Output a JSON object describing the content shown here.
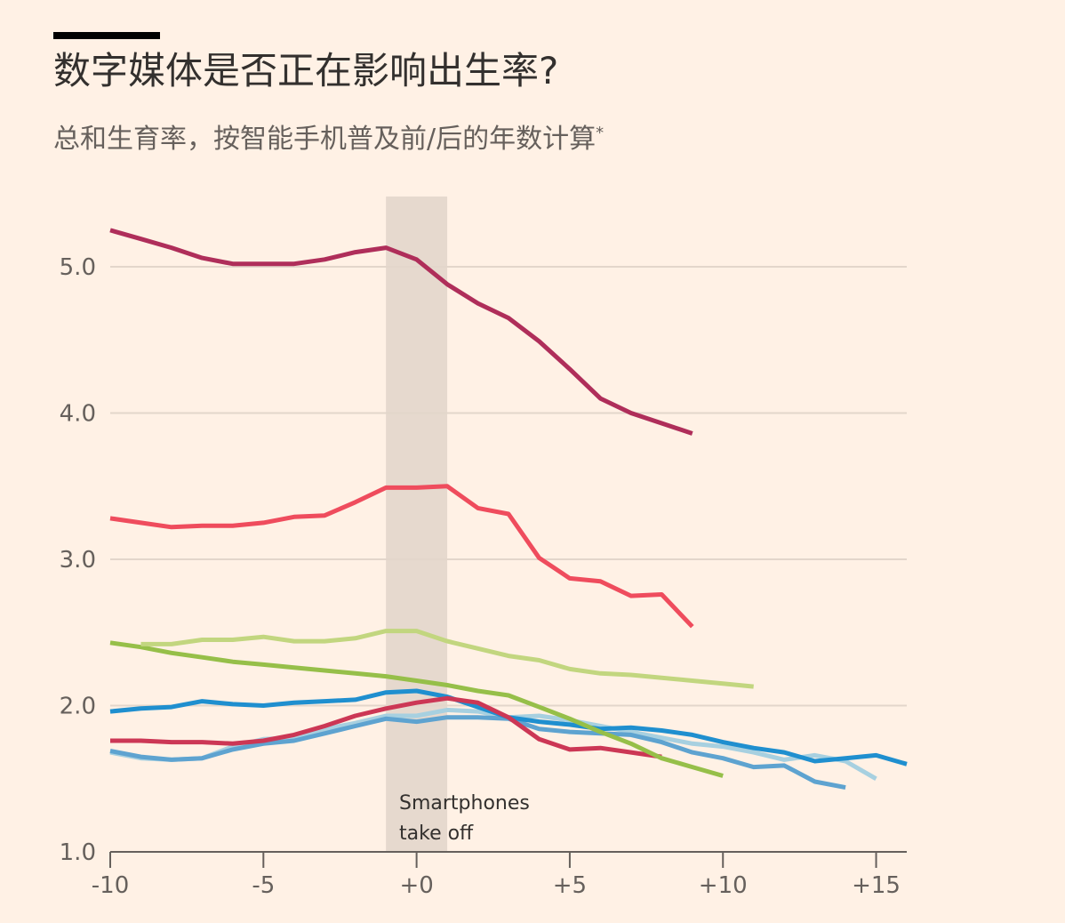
{
  "title": "数字媒体是否正在影响出生率?",
  "subtitle": "总和生育率，按智能手机普及前/后的年数计算",
  "subtitle_marker": "*",
  "annotation": [
    "Smartphones",
    "take off"
  ],
  "chart_data": {
    "type": "line",
    "title": "数字媒体是否正在影响出生率?",
    "subtitle": "总和生育率，按智能手机普及前/后的年数计算*",
    "xlabel": "",
    "ylabel": "",
    "xlim": [
      -10,
      16
    ],
    "ylim": [
      1.0,
      5.5
    ],
    "x_ticks": [
      -10,
      -5,
      0,
      5,
      10,
      15
    ],
    "x_tick_labels": [
      "-10",
      "-5",
      "+0",
      "+5",
      "+10",
      "+15"
    ],
    "y_ticks": [
      1.0,
      2.0,
      3.0,
      4.0,
      5.0
    ],
    "y_tick_labels": [
      "1.0",
      "2.0",
      "3.0",
      "4.0",
      "5.0"
    ],
    "grid": true,
    "shaded_band": {
      "x_from": -1,
      "x_to": 1,
      "label": "Smartphones take off",
      "color": "#E6D9CE"
    },
    "series": [
      {
        "color": "#A7D0E0",
        "x": [
          -10,
          -9,
          -8,
          -7,
          -6,
          -5,
          -4,
          -3,
          -2,
          -1,
          0,
          1,
          2,
          3,
          4,
          5,
          6,
          7,
          8,
          9,
          10,
          11,
          12,
          13,
          14,
          15
        ],
        "values": [
          1.68,
          1.64,
          1.63,
          1.64,
          1.72,
          1.77,
          1.78,
          1.84,
          1.88,
          1.93,
          1.93,
          1.97,
          1.96,
          1.92,
          1.93,
          1.9,
          1.86,
          1.82,
          1.78,
          1.74,
          1.72,
          1.68,
          1.63,
          1.66,
          1.62,
          1.5
        ]
      },
      {
        "color": "#5EA3D0",
        "x": [
          -10,
          -9,
          -8,
          -7,
          -6,
          -5,
          -4,
          -3,
          -2,
          -1,
          0,
          1,
          2,
          3,
          4,
          5,
          6,
          7,
          8,
          9,
          10,
          11,
          12,
          13,
          14
        ],
        "values": [
          1.69,
          1.65,
          1.63,
          1.64,
          1.7,
          1.74,
          1.76,
          1.81,
          1.86,
          1.91,
          1.89,
          1.92,
          1.92,
          1.91,
          1.84,
          1.82,
          1.81,
          1.8,
          1.75,
          1.68,
          1.64,
          1.58,
          1.59,
          1.48,
          1.44
        ]
      },
      {
        "color": "#1F8FCF",
        "x": [
          -10,
          -9,
          -8,
          -7,
          -6,
          -5,
          -4,
          -3,
          -2,
          -1,
          0,
          1,
          2,
          3,
          4,
          5,
          6,
          7,
          8,
          9,
          10,
          11,
          12,
          13,
          14,
          15,
          16
        ],
        "values": [
          1.96,
          1.98,
          1.99,
          2.03,
          2.01,
          2.0,
          2.02,
          2.03,
          2.04,
          2.09,
          2.1,
          2.06,
          1.99,
          1.92,
          1.89,
          1.87,
          1.84,
          1.85,
          1.83,
          1.8,
          1.75,
          1.71,
          1.68,
          1.62,
          1.64,
          1.66,
          1.6
        ]
      },
      {
        "color": "#CC3755",
        "x": [
          -10,
          -9,
          -8,
          -7,
          -6,
          -5,
          -4,
          -3,
          -2,
          -1,
          0,
          1,
          2,
          3,
          4,
          5,
          6,
          7,
          8
        ],
        "values": [
          1.76,
          1.76,
          1.75,
          1.75,
          1.74,
          1.76,
          1.8,
          1.86,
          1.93,
          1.98,
          2.02,
          2.05,
          2.02,
          1.92,
          1.77,
          1.7,
          1.71,
          1.68,
          1.65
        ]
      },
      {
        "color": "#96BF49",
        "x": [
          -10,
          -9,
          -8,
          -7,
          -6,
          -5,
          -4,
          -3,
          -2,
          -1,
          0,
          1,
          2,
          3,
          4,
          5,
          6,
          7,
          8,
          9,
          10
        ],
        "values": [
          2.43,
          2.4,
          2.36,
          2.33,
          2.3,
          2.28,
          2.26,
          2.24,
          2.22,
          2.2,
          2.17,
          2.14,
          2.1,
          2.07,
          1.99,
          1.91,
          1.82,
          1.74,
          1.64,
          1.58,
          1.52
        ]
      },
      {
        "color": "#C2D67F",
        "x": [
          -9,
          -8,
          -7,
          -6,
          -5,
          -4,
          -3,
          -2,
          -1,
          0,
          1,
          2,
          3,
          4,
          5,
          6,
          7,
          8,
          9,
          10,
          11
        ],
        "values": [
          2.42,
          2.42,
          2.45,
          2.45,
          2.47,
          2.44,
          2.44,
          2.46,
          2.51,
          2.51,
          2.44,
          2.39,
          2.34,
          2.31,
          2.25,
          2.22,
          2.21,
          2.19,
          2.17,
          2.15,
          2.13
        ]
      },
      {
        "color": "#EF4C5D",
        "x": [
          -10,
          -9,
          -8,
          -7,
          -6,
          -5,
          -4,
          -3,
          -2,
          -1,
          0,
          1,
          2,
          3,
          4,
          5,
          6,
          7,
          8,
          9
        ],
        "values": [
          3.28,
          3.25,
          3.22,
          3.23,
          3.23,
          3.25,
          3.29,
          3.3,
          3.39,
          3.49,
          3.49,
          3.5,
          3.35,
          3.31,
          3.01,
          2.87,
          2.85,
          2.75,
          2.76,
          2.54
        ]
      },
      {
        "color": "#AF2E5A",
        "x": [
          -10,
          -9,
          -8,
          -7,
          -6,
          -5,
          -4,
          -3,
          -2,
          -1,
          0,
          1,
          2,
          3,
          4,
          5,
          6,
          7,
          8,
          9
        ],
        "values": [
          5.25,
          5.19,
          5.13,
          5.06,
          5.02,
          5.02,
          5.02,
          5.05,
          5.1,
          5.13,
          5.05,
          4.88,
          4.75,
          4.65,
          4.49,
          4.3,
          4.1,
          4.0,
          3.93,
          3.86
        ]
      }
    ]
  }
}
